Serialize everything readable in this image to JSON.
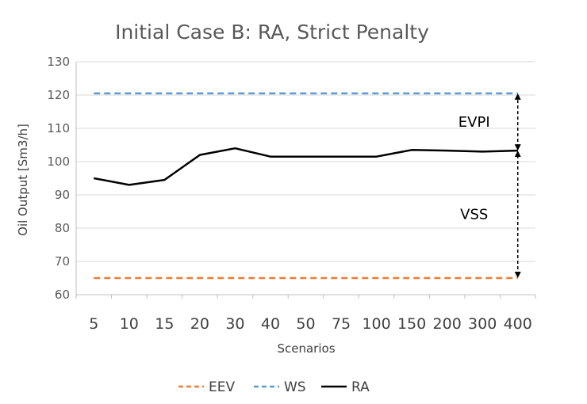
{
  "chart_data": {
    "type": "line",
    "title": "Initial Case B: RA, Strict Penalty",
    "xlabel": "Scenarios",
    "ylabel": "Oil Output [Sm3/h]",
    "ylim": [
      60,
      130
    ],
    "yticks": [
      60,
      70,
      80,
      90,
      100,
      110,
      120,
      130
    ],
    "grid": true,
    "legend_position": "bottom",
    "categories": [
      "5",
      "10",
      "15",
      "20",
      "30",
      "40",
      "50",
      "75",
      "100",
      "150",
      "200",
      "300",
      "400"
    ],
    "series": [
      {
        "name": "EEV",
        "color": "#ED7D31",
        "dash": true,
        "values": [
          65,
          65,
          65,
          65,
          65,
          65,
          65,
          65,
          65,
          65,
          65,
          65,
          65
        ]
      },
      {
        "name": "WS",
        "color": "#5B9BD5",
        "dash": true,
        "values": [
          120.5,
          120.5,
          120.5,
          120.5,
          120.5,
          120.5,
          120.5,
          120.5,
          120.5,
          120.5,
          120.5,
          120.5,
          120.5
        ]
      },
      {
        "name": "RA",
        "color": "#000000",
        "dash": false,
        "values": [
          95,
          93,
          94.5,
          102,
          104,
          101.5,
          101.5,
          101.5,
          101.5,
          103.5,
          103.3,
          103,
          103.3
        ]
      }
    ],
    "annotations": [
      {
        "text": "EVPI",
        "from": 103.3,
        "to": 120.5
      },
      {
        "text": "VSS",
        "from": 65,
        "to": 103.3
      }
    ]
  }
}
